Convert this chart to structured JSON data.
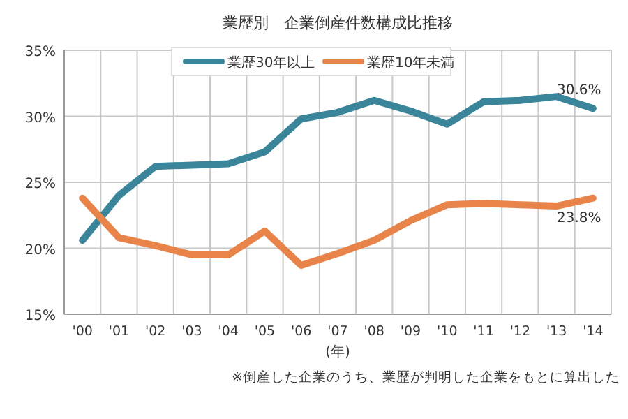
{
  "chart_data": {
    "type": "line",
    "title": "業歴別　企業倒産件数構成比推移",
    "xlabel": "(年)",
    "categories": [
      "'00",
      "'01",
      "'02",
      "'03",
      "'04",
      "'05",
      "'06",
      "'07",
      "'08",
      "'09",
      "'10",
      "'11",
      "'12",
      "'13",
      "'14"
    ],
    "series": [
      {
        "name": "業歴30年以上",
        "color": "#3a8599",
        "values": [
          20.6,
          24.0,
          26.2,
          26.3,
          26.4,
          27.3,
          29.8,
          30.3,
          31.2,
          30.4,
          29.4,
          31.1,
          31.2,
          31.5,
          30.6
        ]
      },
      {
        "name": "業歴10年未満",
        "color": "#e8844a",
        "values": [
          23.8,
          20.8,
          20.2,
          19.5,
          19.5,
          21.3,
          18.7,
          19.6,
          20.6,
          22.1,
          23.3,
          23.4,
          23.3,
          23.2,
          23.8
        ]
      }
    ],
    "ylim": [
      15,
      35
    ],
    "yticks": [
      {
        "value": 15,
        "label": "15%"
      },
      {
        "value": 20,
        "label": "20%"
      },
      {
        "value": 25,
        "label": "25%"
      },
      {
        "value": 30,
        "label": "30%"
      },
      {
        "value": 35,
        "label": "35%"
      }
    ],
    "grid": true,
    "legend": "top",
    "marker": "none",
    "line_style": "solid",
    "annotations": [
      {
        "text": "30.6%",
        "x": "'14",
        "y": 30.6
      },
      {
        "text": "23.8%",
        "x": "'14",
        "y": 23.8
      },
      "※倒産した企業のうち、業歴が判明した企業をもとに算出した"
    ]
  }
}
